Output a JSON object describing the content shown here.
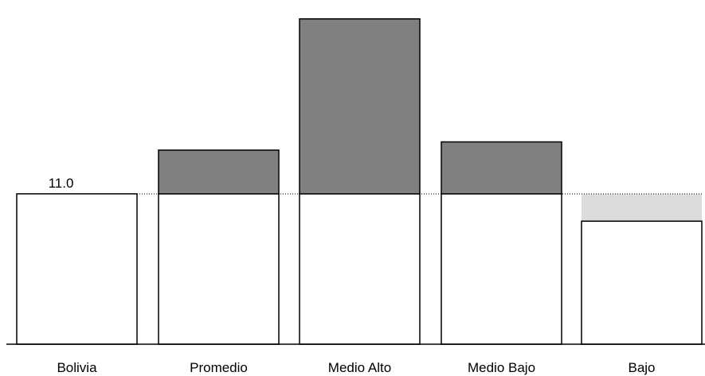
{
  "chart_data": {
    "type": "bar",
    "categories": [
      "Bolivia",
      "Promedio",
      "Medio Alto",
      "Medio Bajo",
      "Bajo"
    ],
    "values": [
      11.0,
      14.2,
      23.8,
      14.8,
      9.0
    ],
    "reference": {
      "value": 11.0,
      "label": "11.0",
      "style": "dotted"
    },
    "data_labels": [
      "11.0",
      "",
      "",
      "",
      ""
    ],
    "ylim": [
      0,
      24.6
    ],
    "grid": false,
    "legend": "none",
    "colors": {
      "base_fill": "#ffffff",
      "above_reference_fill": "#808080",
      "below_reference_fill": "#dcdcdc",
      "outline": "#000000"
    }
  }
}
